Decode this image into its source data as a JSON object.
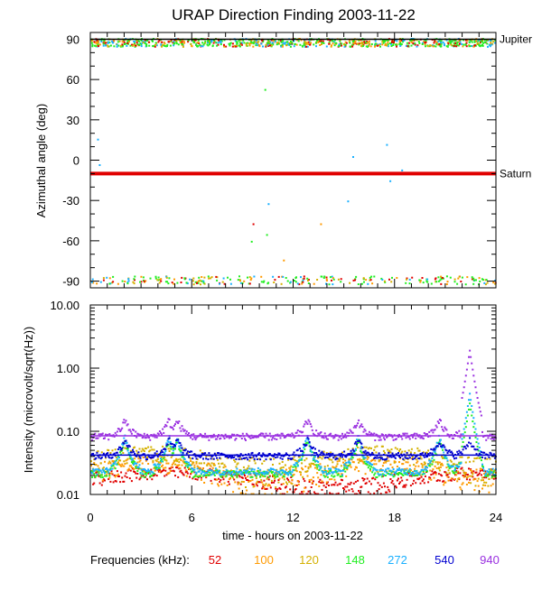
{
  "title": "URAP Direction Finding  2003-11-22",
  "legend": {
    "label": "Frequencies (kHz):",
    "items": [
      {
        "value": "52",
        "color": "#e00000"
      },
      {
        "value": "100",
        "color": "#ff9a00"
      },
      {
        "value": "120",
        "color": "#d4b000"
      },
      {
        "value": "148",
        "color": "#22ee22"
      },
      {
        "value": "272",
        "color": "#1ab0ff"
      },
      {
        "value": "540",
        "color": "#0000d0"
      },
      {
        "value": "940",
        "color": "#9a30e0"
      }
    ]
  },
  "chart_data": [
    {
      "type": "scatter",
      "panel": "top",
      "ylabel": "Azimuthal angle (deg)",
      "xlabel": "",
      "xlim": [
        0,
        24
      ],
      "ylim": [
        -95,
        95
      ],
      "xticks": [
        "0",
        "6",
        "12",
        "18",
        "24"
      ],
      "yticks": [
        "90",
        "60",
        "30",
        "0",
        "-30",
        "-60",
        "-90"
      ],
      "reference_lines": [
        {
          "name": "Jupiter",
          "y": 90,
          "color": "#000000"
        },
        {
          "name": "Saturn",
          "y": -10,
          "color": "#e00000"
        }
      ],
      "description_of_points": "dense cluster near +88 to +92 deg across 0-24 h (mostly 148, 120, 100 kHz), dense cluster near -88 to -92 deg, few scattered points in between"
    },
    {
      "type": "scatter",
      "panel": "bottom",
      "ylabel": "Intensity (microvolt/sqrt(Hz))",
      "xlabel": "time - hours on 2003-11-22",
      "xlim": [
        0,
        24
      ],
      "ylim": [
        0.01,
        10
      ],
      "yscale": "log",
      "xticks": [
        "0",
        "6",
        "12",
        "18",
        "24"
      ],
      "yticks": [
        "10.00",
        "1.00",
        "0.10",
        "0.01"
      ],
      "series": [
        {
          "name": "940",
          "color": "#9a30e0",
          "baseline": 0.085
        },
        {
          "name": "540",
          "color": "#0000d0",
          "baseline": 0.042
        },
        {
          "name": "272",
          "color": "#1ab0ff",
          "baseline": 0.024
        },
        {
          "name": "148",
          "color": "#22ee22",
          "baseline": 0.022
        },
        {
          "name": "120",
          "color": "#d4b000",
          "baseline": 0.045
        },
        {
          "name": "100",
          "color": "#ff9a00",
          "baseline": 0.03
        },
        {
          "name": "52",
          "color": "#e00000",
          "baseline": 0.02
        }
      ],
      "peaks": [
        {
          "series": "940",
          "x": 22.4,
          "y": 1.8
        },
        {
          "series": "272",
          "x": 22.3,
          "y": 0.4
        },
        {
          "series": "148",
          "x": 22.5,
          "y": 0.3
        },
        {
          "series": "940",
          "x": 2.0,
          "y": 0.15
        },
        {
          "series": "940",
          "x": 15.8,
          "y": 0.12
        },
        {
          "series": "940",
          "x": 12.8,
          "y": 0.14
        },
        {
          "series": "940",
          "x": 20.5,
          "y": 0.14
        }
      ]
    }
  ]
}
